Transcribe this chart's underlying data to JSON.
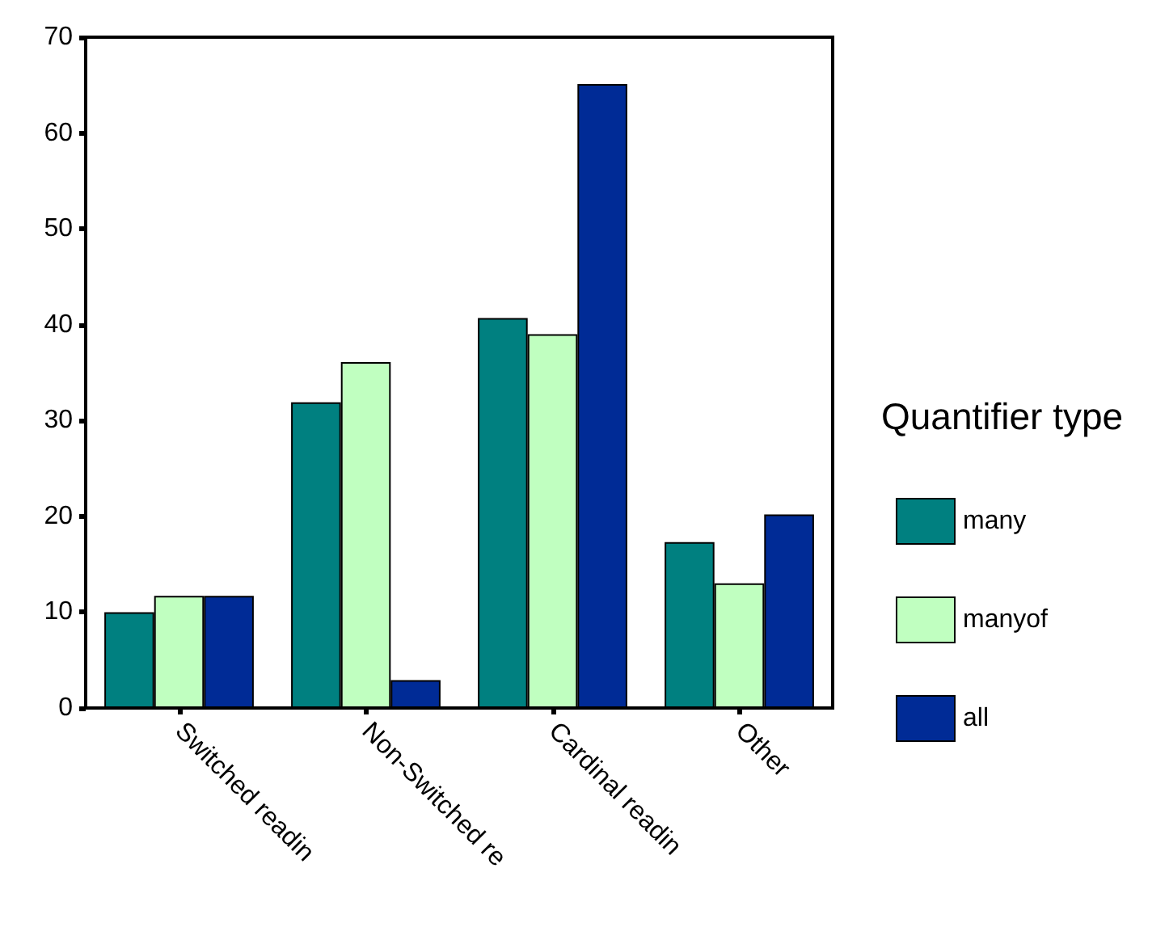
{
  "chart_data": {
    "type": "bar",
    "legend_title": "Quantifier type",
    "categories": [
      "Switched readin",
      "Non-Switched re",
      "Cardinal readin",
      "Other"
    ],
    "series": [
      {
        "name": "many",
        "color": "#008080",
        "values": [
          10.0,
          31.9,
          40.7,
          17.3
        ]
      },
      {
        "name": "manyof",
        "color": "#c0ffc0",
        "values": [
          11.7,
          36.1,
          39.0,
          13.0
        ]
      },
      {
        "name": "all",
        "color": "#002b96",
        "values": [
          11.7,
          2.9,
          65.1,
          20.2
        ]
      }
    ],
    "ylim": [
      0,
      70
    ],
    "yticks": [
      0,
      10,
      20,
      30,
      40,
      50,
      60,
      70
    ],
    "grid": false,
    "legend": "right"
  }
}
